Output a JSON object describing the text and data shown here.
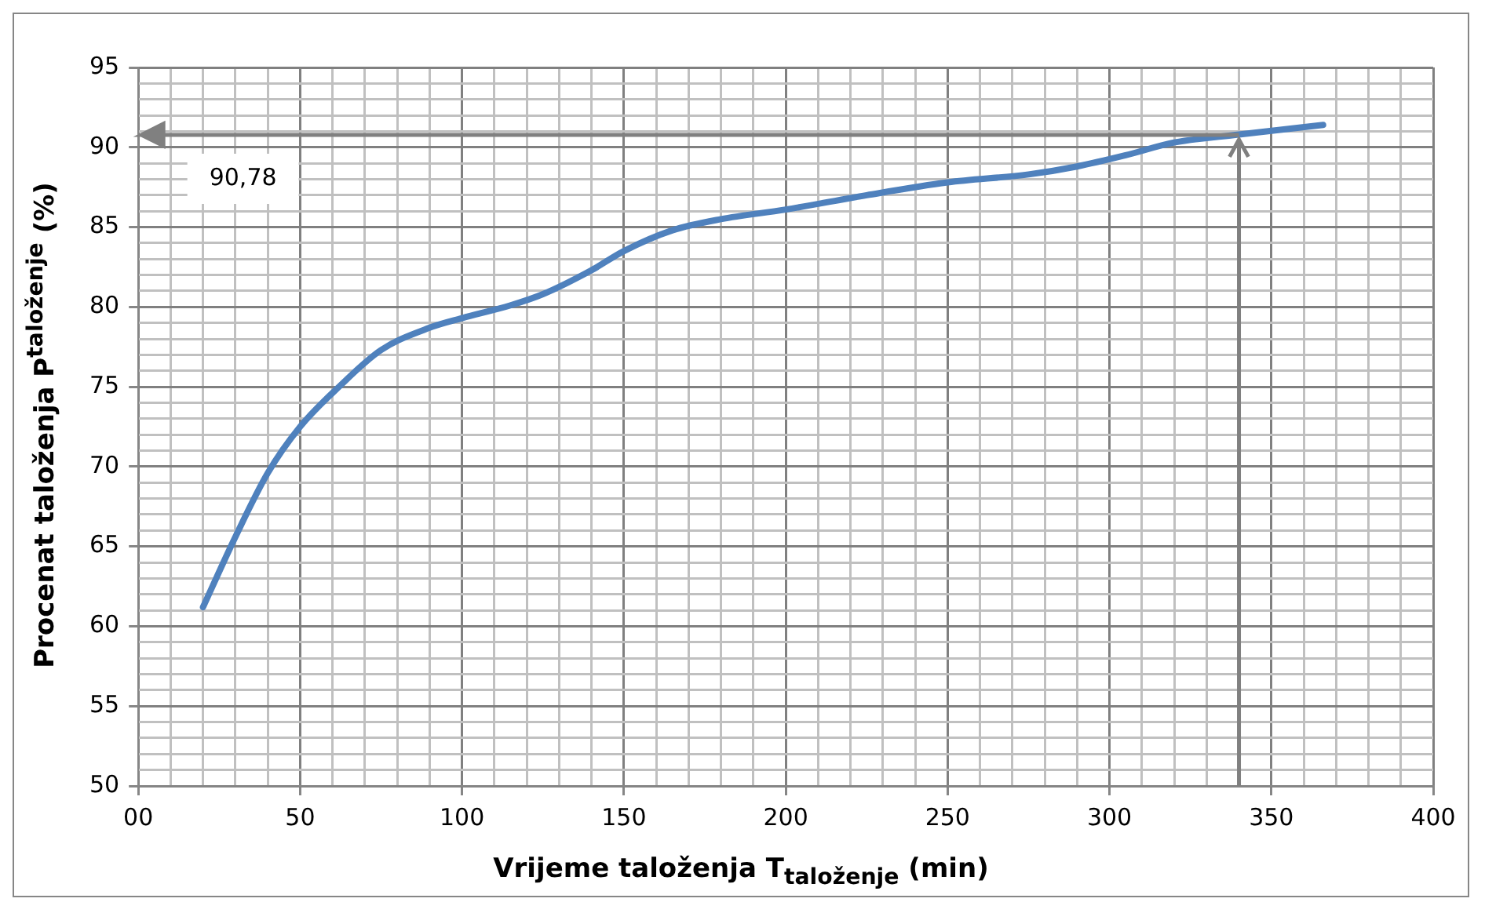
{
  "chart_data": {
    "type": "line",
    "xlabel": "Vrijeme taloženja T$_{taloženje}$ (min)",
    "ylabel": "Procenat taloženja P$^{taloženje}$ (%)",
    "x": [
      20,
      30,
      40,
      50,
      62,
      75,
      90,
      100,
      115,
      125,
      140,
      150,
      165,
      180,
      200,
      225,
      250,
      275,
      290,
      305,
      320,
      340,
      366
    ],
    "series": [
      {
        "color": "#4f81bd",
        "values": [
          61.2,
          65.6,
          69.6,
          72.5,
          75.0,
          77.3,
          78.7,
          79.3,
          80.1,
          80.8,
          82.3,
          83.5,
          84.8,
          85.5,
          86.1,
          87.0,
          87.8,
          88.3,
          88.8,
          89.5,
          90.3,
          90.8,
          91.4
        ]
      }
    ],
    "xlim": [
      0,
      400
    ],
    "xticks": [
      {
        "value": 0,
        "label": "00"
      },
      {
        "value": 10,
        "label": null
      },
      {
        "value": 20,
        "label": null
      },
      {
        "value": 30,
        "label": null
      },
      {
        "value": 40,
        "label": null
      },
      50,
      {
        "value": 60,
        "label": null
      },
      {
        "value": 70,
        "label": null
      },
      {
        "value": 80,
        "label": null
      },
      {
        "value": 90,
        "label": null
      },
      100,
      {
        "value": 110,
        "label": null
      },
      {
        "value": 120,
        "label": null
      },
      {
        "value": 130,
        "label": null
      },
      {
        "value": 140,
        "label": null
      },
      150,
      {
        "value": 160,
        "label": null
      },
      {
        "value": 170,
        "label": null
      },
      {
        "value": 180,
        "label": null
      },
      {
        "value": 190,
        "label": null
      },
      200,
      {
        "value": 210,
        "label": null
      },
      {
        "value": 220,
        "label": null
      },
      {
        "value": 230,
        "label": null
      },
      {
        "value": 240,
        "label": null
      },
      250,
      {
        "value": 260,
        "label": null
      },
      {
        "value": 270,
        "label": null
      },
      {
        "value": 280,
        "label": null
      },
      {
        "value": 290,
        "label": null
      },
      300,
      {
        "value": 310,
        "label": null
      },
      {
        "value": 320,
        "label": null
      },
      {
        "value": 330,
        "label": null
      },
      {
        "value": 340,
        "label": null
      },
      350,
      {
        "value": 360,
        "label": null
      },
      {
        "value": 370,
        "label": null
      },
      {
        "value": 380,
        "label": null
      },
      {
        "value": 390,
        "label": null
      },
      400
    ],
    "ylim": [
      50,
      95
    ],
    "yticks": [
      50,
      {
        "value": 51,
        "label": null
      },
      {
        "value": 52,
        "label": null
      },
      {
        "value": 53,
        "label": null
      },
      {
        "value": 54,
        "label": null
      },
      55,
      {
        "value": 56,
        "label": null
      },
      {
        "value": 57,
        "label": null
      },
      {
        "value": 58,
        "label": null
      },
      {
        "value": 59,
        "label": null
      },
      60,
      {
        "value": 61,
        "label": null
      },
      {
        "value": 62,
        "label": null
      },
      {
        "value": 63,
        "label": null
      },
      {
        "value": 64,
        "label": null
      },
      65,
      {
        "value": 66,
        "label": null
      },
      {
        "value": 67,
        "label": null
      },
      {
        "value": 68,
        "label": null
      },
      {
        "value": 69,
        "label": null
      },
      70,
      {
        "value": 71,
        "label": null
      },
      {
        "value": 72,
        "label": null
      },
      {
        "value": 73,
        "label": null
      },
      {
        "value": 74,
        "label": null
      },
      75,
      {
        "value": 76,
        "label": null
      },
      {
        "value": 77,
        "label": null
      },
      {
        "value": 78,
        "label": null
      },
      {
        "value": 79,
        "label": null
      },
      80,
      {
        "value": 81,
        "label": null
      },
      {
        "value": 82,
        "label": null
      },
      {
        "value": 83,
        "label": null
      },
      {
        "value": 84,
        "label": null
      },
      85,
      {
        "value": 86,
        "label": null
      },
      {
        "value": 87,
        "label": null
      },
      {
        "value": 88,
        "label": null
      },
      {
        "value": 89,
        "label": null
      },
      90,
      {
        "value": 91,
        "label": null
      },
      {
        "value": 92,
        "label": null
      },
      {
        "value": 93,
        "label": null
      },
      {
        "value": 94,
        "label": null
      },
      95
    ],
    "grid": true,
    "legend": false,
    "marker": "none",
    "line_style": "solid",
    "ref_lines": [
      {
        "axis": "y",
        "value": 90.78,
        "label": "90,78",
        "color": "#808080"
      },
      {
        "axis": "x",
        "value": 340,
        "label": null,
        "color": "#808080"
      }
    ]
  }
}
